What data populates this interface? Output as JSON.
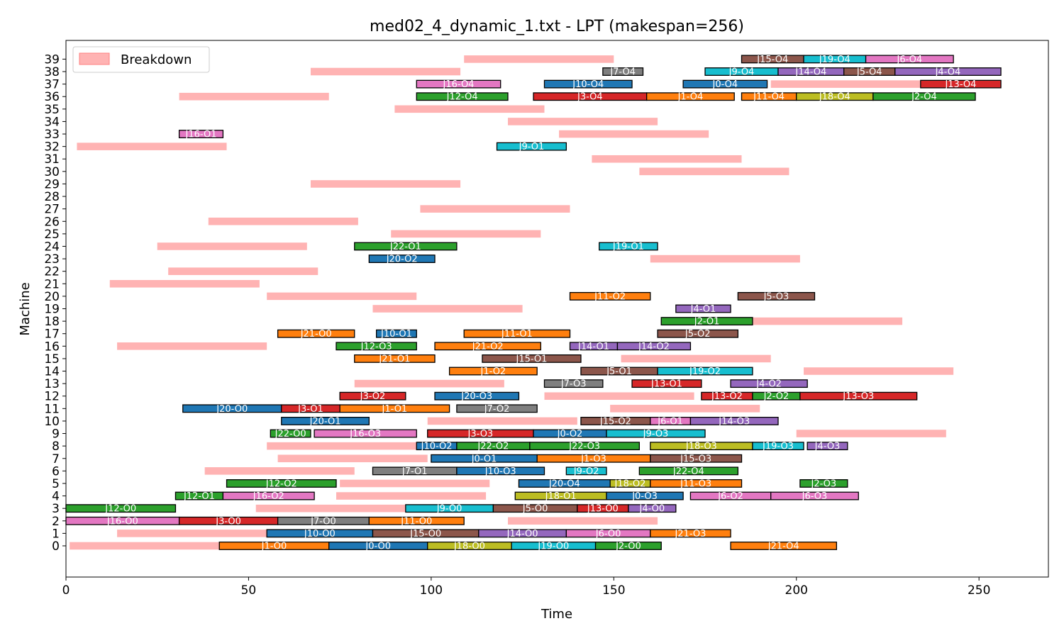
{
  "chart_data": {
    "type": "gantt",
    "title": "med02_4_dynamic_1.txt - LPT (makespan=256)",
    "xlabel": "Time",
    "ylabel": "Machine",
    "xlim": [
      0,
      269
    ],
    "ylim": [
      -2.5,
      40.5
    ],
    "xticks": [
      0,
      50,
      100,
      150,
      200,
      250
    ],
    "yticks": [
      0,
      1,
      2,
      3,
      4,
      5,
      6,
      7,
      8,
      9,
      10,
      11,
      12,
      13,
      14,
      15,
      16,
      17,
      18,
      19,
      20,
      21,
      22,
      23,
      24,
      25,
      26,
      27,
      28,
      29,
      30,
      31,
      32,
      33,
      34,
      35,
      36,
      37,
      38,
      39
    ],
    "legend": {
      "label": "Breakdown",
      "position": "top-left"
    },
    "breakdown_color": "#ffb3b3",
    "job_colors": {
      "J0": "#1f77b4",
      "J1": "#ff7f0e",
      "J2": "#2ca02c",
      "J3": "#d62728",
      "J4": "#9467bd",
      "J5": "#8c564b",
      "J6": "#e377c2",
      "J7": "#7f7f7f",
      "J8": "#bcbd22",
      "J9": "#17becf",
      "J10": "#1f77b4",
      "J11": "#ff7f0e",
      "J12": "#2ca02c",
      "J13": "#d62728",
      "J14": "#9467bd",
      "J15": "#8c564b",
      "J16": "#e377c2",
      "J17": "#7f7f7f",
      "J18": "#bcbd22",
      "J19": "#17becf",
      "J20": "#1f77b4",
      "J21": "#ff7f0e",
      "J22": "#2ca02c"
    },
    "breakdowns": [
      {
        "machine": 0,
        "start": 1,
        "end": 42
      },
      {
        "machine": 1,
        "start": 14,
        "end": 55
      },
      {
        "machine": 2,
        "start": 121,
        "end": 162
      },
      {
        "machine": 3,
        "start": 52,
        "end": 93
      },
      {
        "machine": 4,
        "start": 74,
        "end": 115
      },
      {
        "machine": 5,
        "start": 75,
        "end": 116
      },
      {
        "machine": 6,
        "start": 38,
        "end": 79
      },
      {
        "machine": 7,
        "start": 58,
        "end": 99
      },
      {
        "machine": 8,
        "start": 55,
        "end": 96
      },
      {
        "machine": 9,
        "start": 200,
        "end": 241
      },
      {
        "machine": 10,
        "start": 99,
        "end": 140
      },
      {
        "machine": 11,
        "start": 149,
        "end": 190
      },
      {
        "machine": 12,
        "start": 131,
        "end": 172
      },
      {
        "machine": 13,
        "start": 79,
        "end": 120
      },
      {
        "machine": 14,
        "start": 202,
        "end": 243
      },
      {
        "machine": 15,
        "start": 152,
        "end": 193
      },
      {
        "machine": 16,
        "start": 14,
        "end": 55
      },
      {
        "machine": 18,
        "start": 188,
        "end": 229
      },
      {
        "machine": 19,
        "start": 84,
        "end": 125
      },
      {
        "machine": 20,
        "start": 55,
        "end": 96
      },
      {
        "machine": 21,
        "start": 12,
        "end": 53
      },
      {
        "machine": 22,
        "start": 28,
        "end": 69
      },
      {
        "machine": 23,
        "start": 160,
        "end": 201
      },
      {
        "machine": 24,
        "start": 25,
        "end": 66
      },
      {
        "machine": 25,
        "start": 89,
        "end": 130
      },
      {
        "machine": 26,
        "start": 39,
        "end": 80
      },
      {
        "machine": 27,
        "start": 97,
        "end": 138
      },
      {
        "machine": 29,
        "start": 67,
        "end": 108
      },
      {
        "machine": 30,
        "start": 157,
        "end": 198
      },
      {
        "machine": 31,
        "start": 144,
        "end": 185
      },
      {
        "machine": 32,
        "start": 3,
        "end": 44
      },
      {
        "machine": 33,
        "start": 135,
        "end": 176
      },
      {
        "machine": 34,
        "start": 121,
        "end": 162
      },
      {
        "machine": 35,
        "start": 90,
        "end": 131
      },
      {
        "machine": 36,
        "start": 31,
        "end": 72
      },
      {
        "machine": 37,
        "start": 193,
        "end": 234
      },
      {
        "machine": 38,
        "start": 67,
        "end": 108
      },
      {
        "machine": 39,
        "start": 109,
        "end": 150
      }
    ],
    "operations": [
      {
        "machine": 0,
        "start": 42,
        "end": 72,
        "label": "J1-O0"
      },
      {
        "machine": 0,
        "start": 72,
        "end": 99,
        "label": "J0-O0"
      },
      {
        "machine": 0,
        "start": 99,
        "end": 122,
        "label": "J18-O0"
      },
      {
        "machine": 0,
        "start": 122,
        "end": 145,
        "label": "J19-O0"
      },
      {
        "machine": 0,
        "start": 145,
        "end": 163,
        "label": "J2-O0"
      },
      {
        "machine": 0,
        "start": 182,
        "end": 211,
        "label": "J21-O4"
      },
      {
        "machine": 1,
        "start": 55,
        "end": 84,
        "label": "J10-O0"
      },
      {
        "machine": 1,
        "start": 84,
        "end": 113,
        "label": "J15-O0"
      },
      {
        "machine": 1,
        "start": 113,
        "end": 137,
        "label": "J14-O0"
      },
      {
        "machine": 1,
        "start": 137,
        "end": 160,
        "label": "J6-O0"
      },
      {
        "machine": 1,
        "start": 160,
        "end": 182,
        "label": "J21-O3"
      },
      {
        "machine": 2,
        "start": 0,
        "end": 31,
        "label": "J16-O0"
      },
      {
        "machine": 2,
        "start": 31,
        "end": 58,
        "label": "J3-O0"
      },
      {
        "machine": 2,
        "start": 58,
        "end": 83,
        "label": "J7-O0"
      },
      {
        "machine": 2,
        "start": 83,
        "end": 109,
        "label": "J11-O0"
      },
      {
        "machine": 3,
        "start": 0,
        "end": 30,
        "label": "J12-O0"
      },
      {
        "machine": 3,
        "start": 93,
        "end": 117,
        "label": "J9-O0"
      },
      {
        "machine": 3,
        "start": 117,
        "end": 140,
        "label": "J5-O0"
      },
      {
        "machine": 3,
        "start": 140,
        "end": 154,
        "label": "J13-O0"
      },
      {
        "machine": 3,
        "start": 154,
        "end": 167,
        "label": "J4-O0"
      },
      {
        "machine": 4,
        "start": 30,
        "end": 43,
        "label": "J12-O1"
      },
      {
        "machine": 4,
        "start": 43,
        "end": 68,
        "label": "J16-O2"
      },
      {
        "machine": 4,
        "start": 123,
        "end": 148,
        "label": "J18-O1"
      },
      {
        "machine": 4,
        "start": 148,
        "end": 169,
        "label": "J0-O3"
      },
      {
        "machine": 4,
        "start": 171,
        "end": 193,
        "label": "J6-O2"
      },
      {
        "machine": 4,
        "start": 193,
        "end": 217,
        "label": "J6-O3"
      },
      {
        "machine": 5,
        "start": 44,
        "end": 74,
        "label": "J12-O2"
      },
      {
        "machine": 5,
        "start": 124,
        "end": 149,
        "label": "J20-O4"
      },
      {
        "machine": 5,
        "start": 149,
        "end": 160,
        "label": "J18-O2"
      },
      {
        "machine": 5,
        "start": 160,
        "end": 185,
        "label": "J11-O3"
      },
      {
        "machine": 5,
        "start": 201,
        "end": 214,
        "label": "J2-O3"
      },
      {
        "machine": 6,
        "start": 84,
        "end": 107,
        "label": "J7-O1"
      },
      {
        "machine": 6,
        "start": 107,
        "end": 131,
        "label": "J10-O3"
      },
      {
        "machine": 6,
        "start": 137,
        "end": 148,
        "label": "J9-O2"
      },
      {
        "machine": 6,
        "start": 157,
        "end": 184,
        "label": "J22-O4"
      },
      {
        "machine": 7,
        "start": 100,
        "end": 129,
        "label": "J0-O1"
      },
      {
        "machine": 7,
        "start": 129,
        "end": 160,
        "label": "J1-O3"
      },
      {
        "machine": 7,
        "start": 160,
        "end": 185,
        "label": "J15-O3"
      },
      {
        "machine": 8,
        "start": 96,
        "end": 107,
        "label": "J10-O2"
      },
      {
        "machine": 8,
        "start": 107,
        "end": 127,
        "label": "J22-O2"
      },
      {
        "machine": 8,
        "start": 127,
        "end": 157,
        "label": "J22-O3"
      },
      {
        "machine": 8,
        "start": 160,
        "end": 188,
        "label": "J18-O3"
      },
      {
        "machine": 8,
        "start": 188,
        "end": 202,
        "label": "J19-O3"
      },
      {
        "machine": 8,
        "start": 203,
        "end": 214,
        "label": "J4-O3"
      },
      {
        "machine": 9,
        "start": 56,
        "end": 67,
        "label": "J22-O0"
      },
      {
        "machine": 9,
        "start": 68,
        "end": 96,
        "label": "J16-O3"
      },
      {
        "machine": 9,
        "start": 99,
        "end": 128,
        "label": "J3-O3"
      },
      {
        "machine": 9,
        "start": 128,
        "end": 148,
        "label": "J0-O2"
      },
      {
        "machine": 9,
        "start": 148,
        "end": 175,
        "label": "J9-O3"
      },
      {
        "machine": 10,
        "start": 59,
        "end": 83,
        "label": "J20-O1"
      },
      {
        "machine": 10,
        "start": 141,
        "end": 160,
        "label": "J15-O2"
      },
      {
        "machine": 10,
        "start": 160,
        "end": 171,
        "label": "J6-O1"
      },
      {
        "machine": 10,
        "start": 171,
        "end": 195,
        "label": "J14-O3"
      },
      {
        "machine": 11,
        "start": 32,
        "end": 59,
        "label": "J20-O0"
      },
      {
        "machine": 11,
        "start": 59,
        "end": 75,
        "label": "J3-O1"
      },
      {
        "machine": 11,
        "start": 75,
        "end": 105,
        "label": "J1-O1"
      },
      {
        "machine": 11,
        "start": 107,
        "end": 129,
        "label": "J7-O2"
      },
      {
        "machine": 12,
        "start": 75,
        "end": 93,
        "label": "J3-O2"
      },
      {
        "machine": 12,
        "start": 101,
        "end": 124,
        "label": "J20-O3"
      },
      {
        "machine": 12,
        "start": 174,
        "end": 188,
        "label": "J13-O2"
      },
      {
        "machine": 12,
        "start": 188,
        "end": 201,
        "label": "J2-O2"
      },
      {
        "machine": 12,
        "start": 201,
        "end": 233,
        "label": "J13-O3"
      },
      {
        "machine": 13,
        "start": 131,
        "end": 147,
        "label": "J7-O3"
      },
      {
        "machine": 13,
        "start": 155,
        "end": 174,
        "label": "J13-O1"
      },
      {
        "machine": 13,
        "start": 182,
        "end": 203,
        "label": "J4-O2"
      },
      {
        "machine": 14,
        "start": 105,
        "end": 129,
        "label": "J1-O2"
      },
      {
        "machine": 14,
        "start": 141,
        "end": 162,
        "label": "J5-O1"
      },
      {
        "machine": 14,
        "start": 162,
        "end": 188,
        "label": "J19-O2"
      },
      {
        "machine": 15,
        "start": 79,
        "end": 101,
        "label": "J21-O1"
      },
      {
        "machine": 15,
        "start": 114,
        "end": 141,
        "label": "J15-O1"
      },
      {
        "machine": 16,
        "start": 74,
        "end": 96,
        "label": "J12-O3"
      },
      {
        "machine": 16,
        "start": 101,
        "end": 130,
        "label": "J21-O2"
      },
      {
        "machine": 16,
        "start": 138,
        "end": 151,
        "label": "J14-O1"
      },
      {
        "machine": 16,
        "start": 151,
        "end": 171,
        "label": "J14-O2"
      },
      {
        "machine": 17,
        "start": 58,
        "end": 79,
        "label": "J21-O0"
      },
      {
        "machine": 17,
        "start": 85,
        "end": 96,
        "label": "J10-O1"
      },
      {
        "machine": 17,
        "start": 109,
        "end": 138,
        "label": "J11-O1"
      },
      {
        "machine": 17,
        "start": 162,
        "end": 184,
        "label": "J5-O2"
      },
      {
        "machine": 18,
        "start": 163,
        "end": 188,
        "label": "J2-O1"
      },
      {
        "machine": 19,
        "start": 167,
        "end": 182,
        "label": "J4-O1"
      },
      {
        "machine": 20,
        "start": 138,
        "end": 160,
        "label": "J11-O2"
      },
      {
        "machine": 20,
        "start": 184,
        "end": 205,
        "label": "J5-O3"
      },
      {
        "machine": 23,
        "start": 83,
        "end": 101,
        "label": "J20-O2"
      },
      {
        "machine": 24,
        "start": 79,
        "end": 107,
        "label": "J22-O1"
      },
      {
        "machine": 24,
        "start": 146,
        "end": 162,
        "label": "J19-O1"
      },
      {
        "machine": 32,
        "start": 118,
        "end": 137,
        "label": "J9-O1"
      },
      {
        "machine": 33,
        "start": 31,
        "end": 43,
        "label": "J16-O1"
      },
      {
        "machine": 36,
        "start": 96,
        "end": 121,
        "label": "J12-O4"
      },
      {
        "machine": 36,
        "start": 128,
        "end": 159,
        "label": "J3-O4"
      },
      {
        "machine": 36,
        "start": 159,
        "end": 183,
        "label": "J1-O4"
      },
      {
        "machine": 36,
        "start": 185,
        "end": 200,
        "label": "J11-O4"
      },
      {
        "machine": 36,
        "start": 200,
        "end": 221,
        "label": "J18-O4"
      },
      {
        "machine": 36,
        "start": 221,
        "end": 249,
        "label": "J2-O4"
      },
      {
        "machine": 37,
        "start": 96,
        "end": 119,
        "label": "J16-O4"
      },
      {
        "machine": 37,
        "start": 131,
        "end": 155,
        "label": "J10-O4"
      },
      {
        "machine": 37,
        "start": 169,
        "end": 192,
        "label": "J0-O4"
      },
      {
        "machine": 37,
        "start": 234,
        "end": 256,
        "label": "J13-O4"
      },
      {
        "machine": 38,
        "start": 147,
        "end": 158,
        "label": "J7-O4"
      },
      {
        "machine": 38,
        "start": 175,
        "end": 195,
        "label": "J9-O4"
      },
      {
        "machine": 38,
        "start": 195,
        "end": 213,
        "label": "J14-O4"
      },
      {
        "machine": 38,
        "start": 213,
        "end": 227,
        "label": "J5-O4"
      },
      {
        "machine": 38,
        "start": 227,
        "end": 256,
        "label": "J4-O4"
      },
      {
        "machine": 39,
        "start": 185,
        "end": 202,
        "label": "J15-O4"
      },
      {
        "machine": 39,
        "start": 202,
        "end": 219,
        "label": "J19-O4"
      },
      {
        "machine": 39,
        "start": 219,
        "end": 243,
        "label": "J6-O4"
      }
    ]
  }
}
